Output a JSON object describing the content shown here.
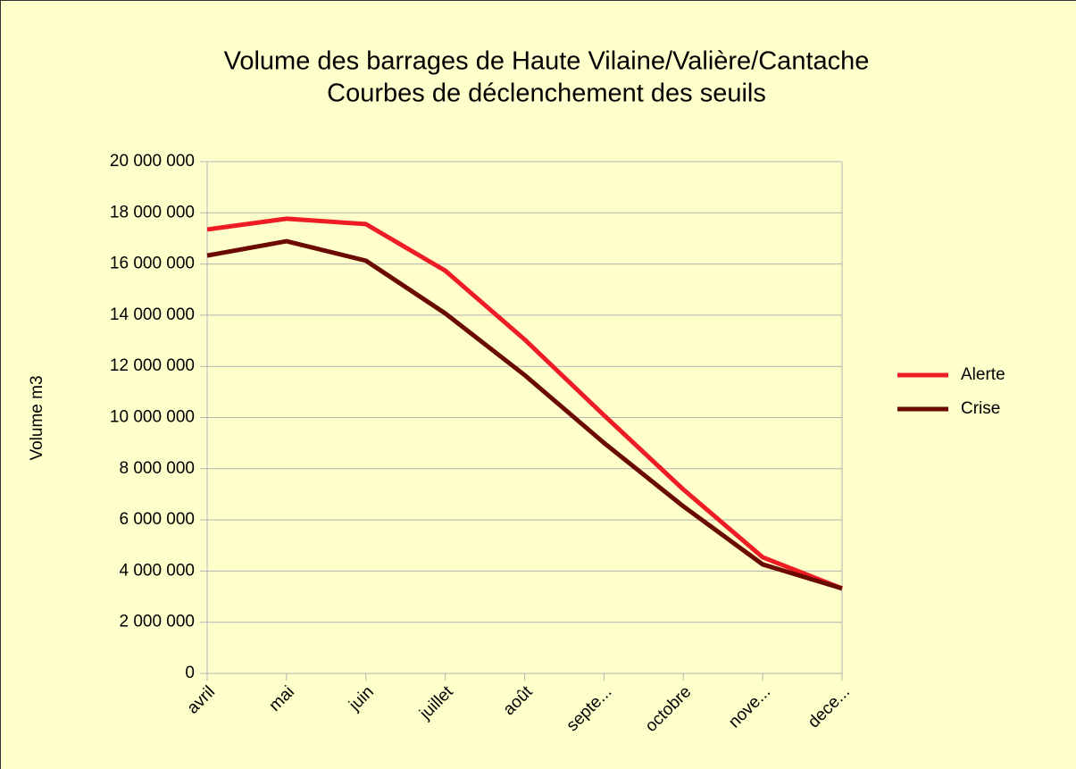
{
  "chart_data": {
    "type": "line",
    "title": "Volume des barrages de Haute Vilaine/Valière/Cantache",
    "subtitle": "Courbes de déclenchement des seuils",
    "y_label": "Volume m3",
    "categories": [
      "avril",
      "mai",
      "juin",
      "juillet",
      "août",
      "septe...",
      "octobre",
      "nove...",
      "dece..."
    ],
    "series": [
      {
        "name": "Alerte",
        "color": "#ee1c25",
        "values": [
          17350000,
          17770000,
          17560000,
          15740000,
          13050000,
          10090000,
          7190000,
          4540000,
          3320000
        ]
      },
      {
        "name": "Crise",
        "color": "#6b0a00",
        "values": [
          16330000,
          16890000,
          16130000,
          14070000,
          11660000,
          9010000,
          6530000,
          4260000,
          3320000
        ]
      }
    ],
    "ylim": [
      0,
      20000000
    ],
    "yticks": [
      0,
      {
        "value": 2000000,
        "label": "2 000 000"
      },
      {
        "value": 4000000,
        "label": "4 000 000"
      },
      {
        "value": 6000000,
        "label": "6 000 000"
      },
      {
        "value": 8000000,
        "label": "8 000 000"
      },
      {
        "value": 10000000,
        "label": "10 000 000"
      },
      {
        "value": 12000000,
        "label": "12 000 000"
      },
      {
        "value": 14000000,
        "label": "14 000 000"
      },
      {
        "value": 16000000,
        "label": "16 000 000"
      },
      {
        "value": 18000000,
        "label": "18 000 000"
      },
      {
        "value": 20000000,
        "label": "20 000 000"
      }
    ],
    "grid": true,
    "legend": "right"
  }
}
